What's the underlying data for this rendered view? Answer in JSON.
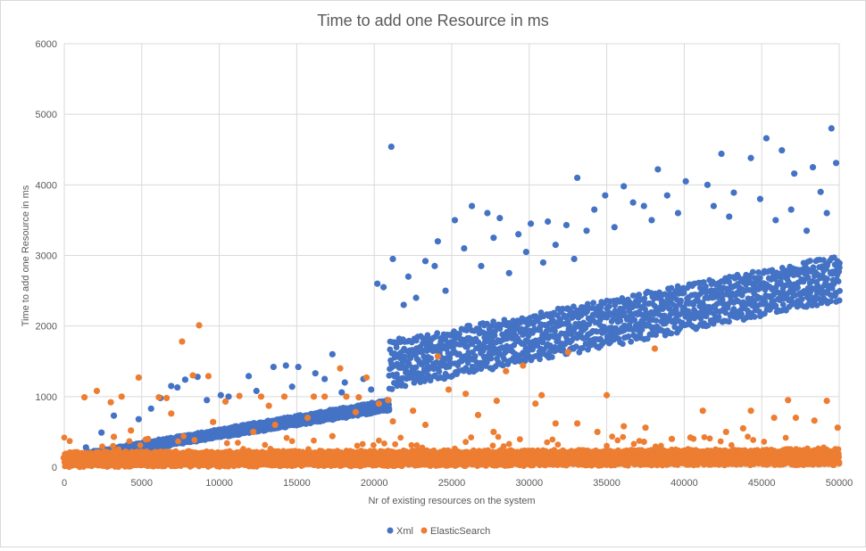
{
  "chart_data": {
    "type": "scatter",
    "title": "Time to add one Resource in ms",
    "xlabel": "Nr of existing resources on the system",
    "ylabel": "Time to add one Resource in ms",
    "xlim": [
      0,
      50000
    ],
    "ylim": [
      0,
      6000
    ],
    "x_ticks": [
      "0",
      "5000",
      "10000",
      "15000",
      "20000",
      "25000",
      "30000",
      "35000",
      "40000",
      "45000",
      "50000"
    ],
    "y_ticks": [
      "0",
      "1000",
      "2000",
      "3000",
      "4000",
      "5000",
      "6000"
    ],
    "grid": "vertical and horizontal major gridlines",
    "legend_position": "bottom",
    "series": [
      {
        "name": "Xml",
        "color": "#4472c4",
        "bands": [
          {
            "x_start": 500,
            "x_end": 21000,
            "y_low_start": 80,
            "y_low_end": 800,
            "y_high_start": 180,
            "y_high_end": 960
          },
          {
            "x_start": 21000,
            "x_end": 50000,
            "y_low_start": 1100,
            "y_low_end": 2350,
            "y_high_start": 1800,
            "y_high_end": 3000
          }
        ],
        "outliers": [
          [
            21100,
            4540
          ],
          [
            49500,
            4800
          ],
          [
            45300,
            4660
          ],
          [
            42400,
            4440
          ],
          [
            46300,
            4490
          ],
          [
            33100,
            4100
          ],
          [
            38300,
            4220
          ],
          [
            44300,
            4380
          ],
          [
            47100,
            4160
          ],
          [
            49800,
            4310
          ],
          [
            48300,
            4250
          ],
          [
            40100,
            4050
          ],
          [
            36100,
            3980
          ],
          [
            41500,
            4000
          ],
          [
            43200,
            3890
          ],
          [
            34900,
            3850
          ],
          [
            37400,
            3700
          ],
          [
            26300,
            3700
          ],
          [
            27300,
            3600
          ],
          [
            25200,
            3500
          ],
          [
            28100,
            3530
          ],
          [
            30100,
            3450
          ],
          [
            31200,
            3480
          ],
          [
            32400,
            3430
          ],
          [
            29300,
            3300
          ],
          [
            24100,
            3200
          ],
          [
            23300,
            2920
          ],
          [
            21200,
            2950
          ],
          [
            22200,
            2700
          ],
          [
            23900,
            2850
          ],
          [
            25800,
            3100
          ],
          [
            27700,
            3250
          ],
          [
            29800,
            3050
          ],
          [
            31700,
            3150
          ],
          [
            33700,
            3350
          ],
          [
            35500,
            3400
          ],
          [
            37900,
            3500
          ],
          [
            39600,
            3600
          ],
          [
            41900,
            3700
          ],
          [
            44900,
            3800
          ],
          [
            46900,
            3650
          ],
          [
            48800,
            3900
          ],
          [
            34200,
            3650
          ],
          [
            36700,
            3750
          ],
          [
            38900,
            3850
          ],
          [
            42900,
            3550
          ],
          [
            45900,
            3500
          ],
          [
            47900,
            3350
          ],
          [
            49200,
            3600
          ],
          [
            26900,
            2850
          ],
          [
            28700,
            2750
          ],
          [
            30900,
            2900
          ],
          [
            32900,
            2950
          ],
          [
            20200,
            2600
          ],
          [
            20600,
            2550
          ],
          [
            21900,
            2300
          ],
          [
            22700,
            2400
          ],
          [
            24600,
            2500
          ],
          [
            13500,
            1420
          ],
          [
            14300,
            1440
          ],
          [
            15100,
            1420
          ],
          [
            16200,
            1330
          ],
          [
            17300,
            1600
          ],
          [
            18100,
            1200
          ],
          [
            19300,
            1250
          ],
          [
            11900,
            1290
          ],
          [
            12400,
            1080
          ],
          [
            10600,
            1000
          ],
          [
            9200,
            950
          ],
          [
            8600,
            1280
          ],
          [
            7800,
            1240
          ],
          [
            7300,
            1130
          ],
          [
            6200,
            980
          ],
          [
            5600,
            830
          ],
          [
            4800,
            680
          ],
          [
            3200,
            730
          ],
          [
            2400,
            490
          ],
          [
            1400,
            280
          ],
          [
            6900,
            1150
          ],
          [
            10100,
            1020
          ],
          [
            14700,
            1140
          ],
          [
            16800,
            1250
          ],
          [
            19800,
            1100
          ],
          [
            17900,
            1060
          ]
        ]
      },
      {
        "name": "ElasticSearch",
        "color": "#ed7d31",
        "bands": [
          {
            "x_start": 0,
            "x_end": 50000,
            "y_low_start": 0,
            "y_low_end": 30,
            "y_high_start": 220,
            "y_high_end": 260
          }
        ],
        "outliers": [
          [
            8700,
            2010
          ],
          [
            7600,
            1780
          ],
          [
            4800,
            1270
          ],
          [
            8300,
            1300
          ],
          [
            9300,
            1290
          ],
          [
            17800,
            1400
          ],
          [
            19500,
            1270
          ],
          [
            2100,
            1080
          ],
          [
            1300,
            990
          ],
          [
            3700,
            1000
          ],
          [
            6100,
            990
          ],
          [
            6600,
            980
          ],
          [
            11300,
            1010
          ],
          [
            12700,
            1000
          ],
          [
            14200,
            1000
          ],
          [
            16100,
            1000
          ],
          [
            16800,
            1000
          ],
          [
            18200,
            1000
          ],
          [
            19000,
            990
          ],
          [
            20300,
            900
          ],
          [
            20900,
            950
          ],
          [
            24800,
            1100
          ],
          [
            25900,
            1040
          ],
          [
            24100,
            1570
          ],
          [
            29600,
            1440
          ],
          [
            28500,
            1360
          ],
          [
            32500,
            1630
          ],
          [
            38100,
            1680
          ],
          [
            35000,
            1020
          ],
          [
            30800,
            1020
          ],
          [
            31700,
            620
          ],
          [
            36100,
            580
          ],
          [
            41200,
            800
          ],
          [
            43800,
            550
          ],
          [
            44300,
            800
          ],
          [
            45800,
            700
          ],
          [
            46700,
            950
          ],
          [
            47200,
            700
          ],
          [
            48400,
            660
          ],
          [
            49200,
            940
          ],
          [
            49900,
            560
          ],
          [
            4300,
            520
          ],
          [
            3200,
            430
          ],
          [
            5400,
            400
          ],
          [
            9600,
            640
          ],
          [
            12200,
            500
          ],
          [
            13600,
            600
          ],
          [
            15700,
            700
          ],
          [
            17300,
            440
          ],
          [
            21200,
            650
          ],
          [
            22500,
            800
          ],
          [
            23300,
            600
          ],
          [
            26700,
            740
          ],
          [
            27700,
            500
          ],
          [
            30400,
            900
          ],
          [
            33100,
            620
          ],
          [
            34400,
            500
          ],
          [
            37500,
            560
          ],
          [
            39200,
            400
          ],
          [
            40400,
            420
          ],
          [
            42700,
            500
          ],
          [
            3000,
            920
          ],
          [
            6900,
            760
          ],
          [
            10400,
            930
          ],
          [
            13200,
            870
          ],
          [
            18800,
            780
          ],
          [
            27900,
            940
          ],
          [
            37400,
            360
          ]
        ]
      }
    ]
  }
}
